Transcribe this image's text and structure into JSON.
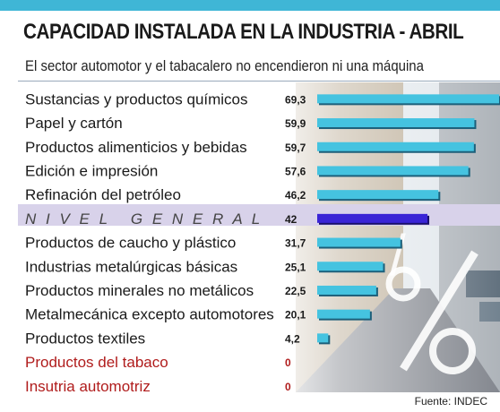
{
  "header": {
    "title": "CAPACIDAD INSTALADA EN LA INDUSTRIA - ABRIL",
    "subtitle": "El sector automotor y el tabacalero no encendieron ni una máquina"
  },
  "footer": {
    "source": "Fuente: INDEC"
  },
  "colors": {
    "bar": "#45c3e0",
    "bar_dark": "#1c5f7a",
    "highlight_bar": "#3a24d6",
    "highlight_band": "#d8d2ea",
    "zero_label": "#b01c1c",
    "accent": "#3fb6d6"
  },
  "chart_data": {
    "type": "bar",
    "orientation": "horizontal",
    "title": "CAPACIDAD INSTALADA EN LA INDUSTRIA - ABRIL",
    "subtitle": "El sector automotor y el tabacalero no encendieron ni una máquina",
    "xlabel": "",
    "ylabel": "",
    "xlim": [
      0,
      70
    ],
    "grid": false,
    "categories": [
      "Sustancias y productos químicos",
      "Papel y cartón",
      "Productos alimenticios y bebidas",
      "Edición e impresión",
      "Refinación del petróleo",
      "N I V E L   G E N E R A L",
      "Productos de caucho y plástico",
      "Industrias metalúrgicas básicas",
      "Productos minerales no metálicos",
      "Metalmecánica excepto automotores",
      "Productos textiles",
      "Productos del tabaco",
      "Insutria automotriz"
    ],
    "values": [
      69.3,
      59.9,
      59.7,
      57.6,
      46.2,
      42,
      31.7,
      25.1,
      22.5,
      20.1,
      4.2,
      0,
      0
    ],
    "value_labels": [
      "69,3",
      "59,9",
      "59,7",
      "57,6",
      "46,2",
      "42",
      "31,7",
      "25,1",
      "22,5",
      "20,1",
      "4,2",
      "0",
      "0"
    ],
    "highlight": [
      "N I V E L   G E N E R A L"
    ],
    "zero_categories": [
      "Productos del tabaco",
      "Insutria automotriz"
    ]
  }
}
